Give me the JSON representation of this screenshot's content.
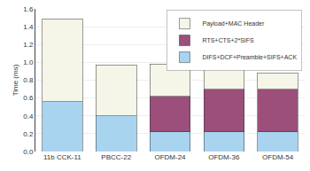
{
  "chart_data": {
    "type": "bar",
    "stacked": true,
    "categories": [
      "11b CCK-11",
      "PBCC-22",
      "OFDM-24",
      "OFDM-36",
      "OFDM-54"
    ],
    "series": [
      {
        "name": "DIFS+DCF+Preamble+SIFS+ACK",
        "color": "#A8D4F0",
        "values": [
          0.56,
          0.4,
          0.22,
          0.22,
          0.22
        ]
      },
      {
        "name": "RTS+CTS+2*SIFS",
        "color": "#9B4F7A",
        "values": [
          0.0,
          0.0,
          0.4,
          0.48,
          0.48
        ]
      },
      {
        "name": "Payload+MAC Header",
        "color": "#F5F5E8",
        "values": [
          0.93,
          0.57,
          0.36,
          0.25,
          0.18
        ]
      }
    ],
    "ylabel": "Time (ms)",
    "ylim": [
      0.0,
      1.6
    ],
    "yticks": [
      {
        "value": 0.0,
        "label": "0.0"
      },
      0.2,
      0.4,
      0.6,
      0.8,
      {
        "value": 1.0,
        "label": "1.0"
      },
      1.2,
      1.4,
      1.6
    ],
    "grid": true,
    "legend": "upper right"
  }
}
